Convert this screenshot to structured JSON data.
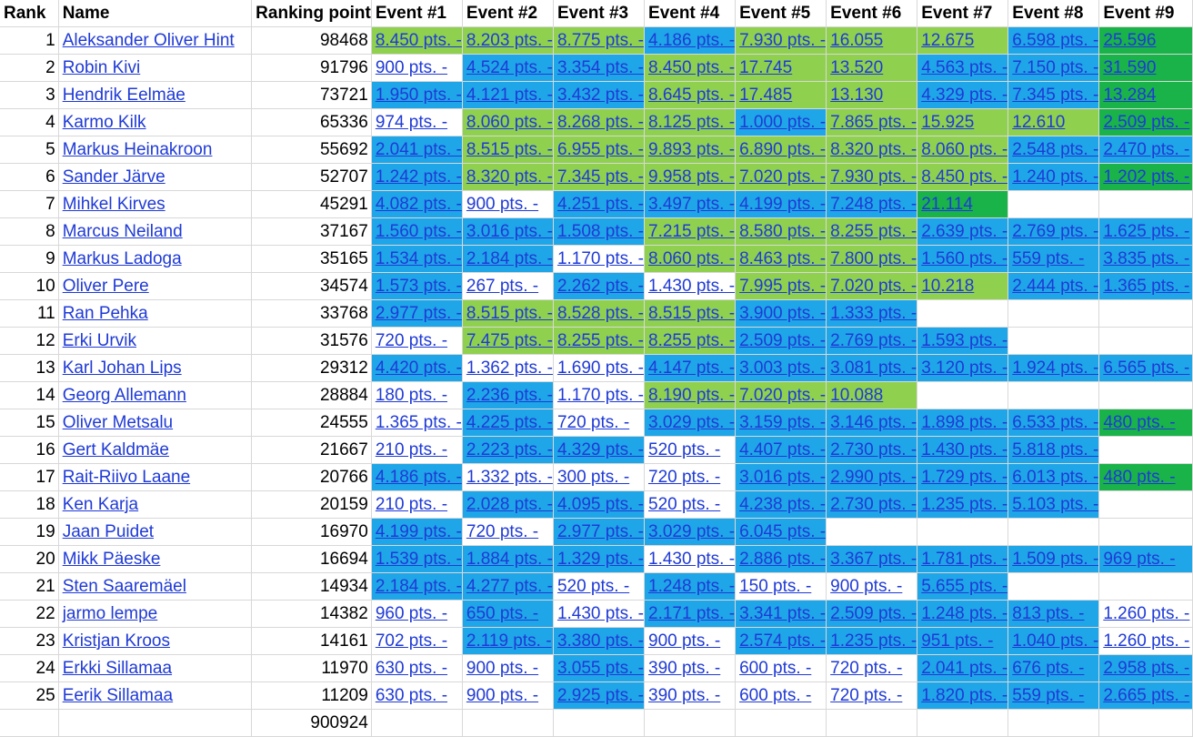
{
  "headers": [
    "Rank",
    "Name",
    "Ranking point",
    "Event #1",
    "Event #2",
    "Event #3",
    "Event #4",
    "Event #5",
    "Event #6",
    "Event #7",
    "Event #8",
    "Event #9"
  ],
  "colors": {
    "b": "#1fa6e8",
    "g": "#8fd14f",
    "d": "#19b34a",
    "w": "#ffffff"
  },
  "rows": [
    {
      "rank": "1",
      "name": "Aleksander Oliver Hint",
      "points": "98468",
      "events": [
        "8.450 pts. -",
        "8.203 pts. -",
        "8.775 pts. -",
        "4.186 pts. -",
        "7.930 pts. -",
        "16.055",
        "12.675",
        "6.598 pts. -",
        "25.596"
      ],
      "fills": [
        "g",
        "g",
        "g",
        "b",
        "g",
        "g",
        "g",
        "b",
        "d"
      ]
    },
    {
      "rank": "2",
      "name": "Robin Kivi",
      "points": "91796",
      "events": [
        "900 pts. -",
        "4.524 pts. -",
        "3.354 pts. -",
        "8.450 pts. -",
        "17.745",
        "13.520",
        "4.563 pts. -",
        "7.150 pts. -",
        "31.590"
      ],
      "fills": [
        "w",
        "b",
        "b",
        "g",
        "g",
        "g",
        "b",
        "b",
        "d"
      ]
    },
    {
      "rank": "3",
      "name": "Hendrik Eelmäe",
      "points": "73721",
      "events": [
        "1.950 pts. -",
        "4.121 pts. -",
        "3.432 pts. -",
        "8.645 pts. -",
        "17.485",
        "13.130",
        "4.329 pts. -",
        "7.345 pts. -",
        "13.284"
      ],
      "fills": [
        "b",
        "b",
        "b",
        "g",
        "g",
        "g",
        "b",
        "b",
        "d"
      ]
    },
    {
      "rank": "4",
      "name": "Karmo Kilk",
      "points": "65336",
      "events": [
        "974 pts. -",
        "8.060 pts. -",
        "8.268 pts. -",
        "8.125 pts. -",
        "1.000 pts. -",
        "7.865 pts. -",
        "15.925",
        "12.610",
        "2.509 pts. -"
      ],
      "fills": [
        "w",
        "g",
        "g",
        "g",
        "b",
        "g",
        "g",
        "g",
        "d"
      ]
    },
    {
      "rank": "5",
      "name": "Markus Heinakroon",
      "points": "55692",
      "events": [
        "2.041 pts. -",
        "8.515 pts. -",
        "6.955 pts. -",
        "9.893 pts. -",
        "6.890 pts. -",
        "8.320 pts. -",
        "8.060 pts. -",
        "2.548 pts. -",
        "2.470 pts. -"
      ],
      "fills": [
        "b",
        "g",
        "g",
        "g",
        "g",
        "g",
        "g",
        "b",
        "b"
      ]
    },
    {
      "rank": "6",
      "name": "Sander Järve",
      "points": "52707",
      "events": [
        "1.242 pts. -",
        "8.320 pts. -",
        "7.345 pts. -",
        "9.958 pts. -",
        "7.020 pts. -",
        "7.930 pts. -",
        "8.450 pts. -",
        "1.240 pts. -",
        "1.202 pts. -"
      ],
      "fills": [
        "b",
        "g",
        "g",
        "g",
        "g",
        "g",
        "g",
        "b",
        "d"
      ]
    },
    {
      "rank": "7",
      "name": "Mihkel Kirves",
      "points": "45291",
      "events": [
        "4.082 pts. -",
        "900 pts. -",
        "4.251 pts. -",
        "3.497 pts. -",
        "4.199 pts. -",
        "7.248 pts. -",
        "21.114",
        "",
        ""
      ],
      "fills": [
        "b",
        "w",
        "b",
        "b",
        "b",
        "b",
        "d",
        "w",
        "w"
      ]
    },
    {
      "rank": "8",
      "name": "Marcus Neiland",
      "points": "37167",
      "events": [
        "1.560 pts. -",
        "3.016 pts. -",
        "1.508 pts. -",
        "7.215 pts. -",
        "8.580 pts. -",
        "8.255 pts. -",
        "2.639 pts. -",
        "2.769 pts. -",
        "1.625 pts. -"
      ],
      "fills": [
        "b",
        "b",
        "b",
        "g",
        "g",
        "g",
        "b",
        "b",
        "b"
      ]
    },
    {
      "rank": "9",
      "name": "Markus Ladoga",
      "points": "35165",
      "events": [
        "1.534 pts. -",
        "2.184 pts. -",
        "1.170 pts. -",
        "8.060 pts. -",
        "8.463 pts. -",
        "7.800 pts. -",
        "1.560 pts. -",
        "559 pts. -",
        "3.835 pts. -"
      ],
      "fills": [
        "b",
        "b",
        "w",
        "g",
        "g",
        "g",
        "b",
        "b",
        "b"
      ]
    },
    {
      "rank": "10",
      "name": "Oliver Pere",
      "points": "34574",
      "events": [
        "1.573 pts. -",
        "267 pts. -",
        "2.262 pts. -",
        "1.430 pts. -",
        "7.995 pts. -",
        "7.020 pts. -",
        "10.218",
        "2.444 pts. -",
        "1.365 pts. -"
      ],
      "fills": [
        "b",
        "w",
        "b",
        "w",
        "g",
        "g",
        "g",
        "b",
        "b"
      ]
    },
    {
      "rank": "11",
      "name": "Ran Pehka",
      "points": "33768",
      "events": [
        "2.977 pts. -",
        "8.515 pts. -",
        "8.528 pts. -",
        "8.515 pts. -",
        "3.900 pts. -",
        "1.333 pts. -",
        "",
        "",
        ""
      ],
      "fills": [
        "b",
        "g",
        "g",
        "g",
        "b",
        "b",
        "w",
        "w",
        "w"
      ]
    },
    {
      "rank": "12",
      "name": "Erki Urvik",
      "points": "31576",
      "events": [
        "720 pts. -",
        "7.475 pts. -",
        "8.255 pts. -",
        "8.255 pts. -",
        "2.509 pts. -",
        "2.769 pts. -",
        "1.593 pts. -",
        "",
        ""
      ],
      "fills": [
        "w",
        "g",
        "g",
        "g",
        "b",
        "b",
        "b",
        "w",
        "w"
      ]
    },
    {
      "rank": "13",
      "name": "Karl Johan Lips",
      "points": "29312",
      "events": [
        "4.420 pts. -",
        "1.362 pts. -",
        "1.690 pts. -",
        "4.147 pts. -",
        "3.003 pts. -",
        "3.081 pts. -",
        "3.120 pts. -",
        "1.924 pts. -",
        "6.565 pts. -"
      ],
      "fills": [
        "b",
        "w",
        "w",
        "b",
        "b",
        "b",
        "b",
        "b",
        "b"
      ]
    },
    {
      "rank": "14",
      "name": "Georg Allemann",
      "points": "28884",
      "events": [
        "180 pts. -",
        "2.236 pts. -",
        "1.170 pts. -",
        "8.190 pts. -",
        "7.020 pts. -",
        "10.088",
        "",
        "",
        ""
      ],
      "fills": [
        "w",
        "b",
        "w",
        "g",
        "g",
        "g",
        "w",
        "w",
        "w"
      ]
    },
    {
      "rank": "15",
      "name": "Oliver Metsalu",
      "points": "24555",
      "events": [
        "1.365 pts. -",
        "4.225 pts. -",
        "720 pts. -",
        "3.029 pts. -",
        "3.159 pts. -",
        "3.146 pts. -",
        "1.898 pts. -",
        "6.533 pts. -",
        "480 pts. -"
      ],
      "fills": [
        "w",
        "b",
        "w",
        "b",
        "b",
        "b",
        "b",
        "b",
        "d"
      ]
    },
    {
      "rank": "16",
      "name": "Gert Kaldmäe",
      "points": "21667",
      "events": [
        "210 pts. -",
        "2.223 pts. -",
        "4.329 pts. -",
        "520 pts. -",
        "4.407 pts. -",
        "2.730 pts. -",
        "1.430 pts. -",
        "5.818 pts. -",
        ""
      ],
      "fills": [
        "w",
        "b",
        "b",
        "w",
        "b",
        "b",
        "b",
        "b",
        "w"
      ]
    },
    {
      "rank": "17",
      "name": "Rait-Riivo Laane",
      "points": "20766",
      "events": [
        "4.186 pts. -",
        "1.332 pts. -",
        "300 pts. -",
        "720 pts. -",
        "3.016 pts. -",
        "2.990 pts. -",
        "1.729 pts. -",
        "6.013 pts. -",
        "480 pts. -"
      ],
      "fills": [
        "b",
        "w",
        "w",
        "w",
        "b",
        "b",
        "b",
        "b",
        "d"
      ]
    },
    {
      "rank": "18",
      "name": "Ken Karja",
      "points": "20159",
      "events": [
        "210 pts. -",
        "2.028 pts. -",
        "4.095 pts. -",
        "520 pts. -",
        "4.238 pts. -",
        "2.730 pts. -",
        "1.235 pts. -",
        "5.103 pts. -",
        ""
      ],
      "fills": [
        "w",
        "b",
        "b",
        "w",
        "b",
        "b",
        "b",
        "b",
        "w"
      ]
    },
    {
      "rank": "19",
      "name": "Jaan Puidet",
      "points": "16970",
      "events": [
        "4.199 pts. -",
        "720 pts. -",
        "2.977 pts. -",
        "3.029 pts. -",
        "6.045 pts. -",
        "",
        "",
        "",
        ""
      ],
      "fills": [
        "b",
        "w",
        "b",
        "b",
        "b",
        "w",
        "w",
        "w",
        "w"
      ]
    },
    {
      "rank": "20",
      "name": "Mikk Päeske",
      "points": "16694",
      "events": [
        "1.539 pts. -",
        "1.884 pts. -",
        "1.329 pts. -",
        "1.430 pts. -",
        "2.886 pts. -",
        "3.367 pts. -",
        "1.781 pts. -",
        "1.509 pts. -",
        "969 pts. -"
      ],
      "fills": [
        "b",
        "b",
        "b",
        "w",
        "b",
        "b",
        "b",
        "b",
        "b"
      ]
    },
    {
      "rank": "21",
      "name": "Sten Saaremäel",
      "points": "14934",
      "events": [
        "2.184 pts. -",
        "4.277 pts. -",
        "520 pts. -",
        "1.248 pts. -",
        "150 pts. -",
        "900 pts. -",
        "5.655 pts. -",
        "",
        ""
      ],
      "fills": [
        "b",
        "b",
        "w",
        "b",
        "w",
        "w",
        "b",
        "w",
        "w"
      ]
    },
    {
      "rank": "22",
      "name": "jarmo lempe",
      "points": "14382",
      "events": [
        "960 pts. -",
        "650 pts. -",
        "1.430 pts. -",
        "2.171 pts. -",
        "3.341 pts. -",
        "2.509 pts. -",
        "1.248 pts. -",
        "813 pts. -",
        "1.260 pts. -"
      ],
      "fills": [
        "w",
        "b",
        "w",
        "b",
        "b",
        "b",
        "b",
        "b",
        "w"
      ]
    },
    {
      "rank": "23",
      "name": "Kristjan Kroos",
      "points": "14161",
      "events": [
        "702 pts. -",
        "2.119 pts. -",
        "3.380 pts. -",
        "900 pts. -",
        "2.574 pts. -",
        "1.235 pts. -",
        "951 pts. -",
        "1.040 pts. -",
        "1.260 pts. -"
      ],
      "fills": [
        "w",
        "b",
        "b",
        "w",
        "b",
        "b",
        "b",
        "b",
        "w"
      ]
    },
    {
      "rank": "24",
      "name": "Erkki Sillamaa",
      "points": "11970",
      "events": [
        "630 pts. -",
        "900 pts. -",
        "3.055 pts. -",
        "390 pts. -",
        "600 pts. -",
        "720 pts. -",
        "2.041 pts. -",
        "676 pts. -",
        "2.958 pts. -"
      ],
      "fills": [
        "w",
        "w",
        "b",
        "w",
        "w",
        "w",
        "b",
        "b",
        "b"
      ]
    },
    {
      "rank": "25",
      "name": "Eerik Sillamaa",
      "points": "11209",
      "events": [
        "630 pts. -",
        "900 pts. -",
        "2.925 pts. -",
        "390 pts. -",
        "600 pts. -",
        "720 pts. -",
        "1.820 pts. -",
        "559 pts. -",
        "2.665 pts. -"
      ],
      "fills": [
        "w",
        "w",
        "b",
        "w",
        "w",
        "w",
        "b",
        "b",
        "b"
      ]
    }
  ],
  "total_points": "900924"
}
